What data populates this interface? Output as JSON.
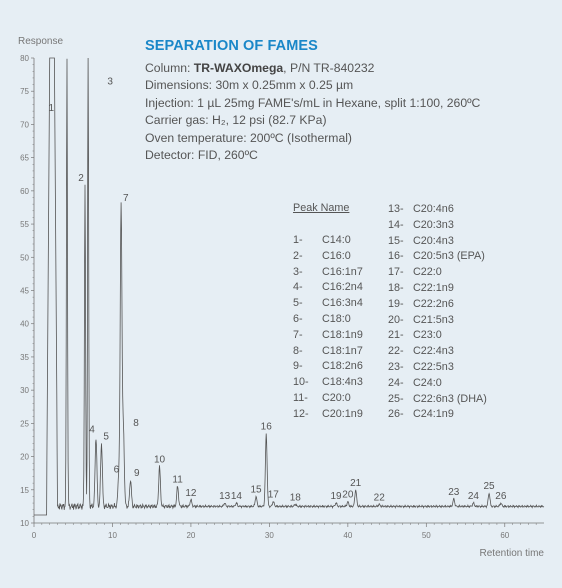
{
  "info": {
    "title": "SEPARATION OF FAMES",
    "column_label": "Column: ",
    "column_name": "TR-WAXOmega",
    "column_pn": ", P/N TR-840232",
    "dimensions": "Dimensions: 30m x 0.25mm x 0.25 µm",
    "injection": "Injection: 1 µL 25mg FAME's/mL in Hexane, split 1:100, 260ºC",
    "carrier": "Carrier gas: H₂, 12 psi (82.7 KPa)",
    "oven": "Oven temperature: 200ºC (Isothermal)",
    "detector": "Detector: FID, 260ºC"
  },
  "peak_table": {
    "header": "Peak Name",
    "left": [
      {
        "n": "1-",
        "name": "C14:0"
      },
      {
        "n": "2-",
        "name": "C16:0"
      },
      {
        "n": "3-",
        "name": "C16:1n7"
      },
      {
        "n": "4-",
        "name": "C16:2n4"
      },
      {
        "n": "5-",
        "name": "C16:3n4"
      },
      {
        "n": "6-",
        "name": "C18:0"
      },
      {
        "n": "7-",
        "name": "C18:1n9"
      },
      {
        "n": "8-",
        "name": "C18:1n7"
      },
      {
        "n": "9-",
        "name": "C18:2n6"
      },
      {
        "n": "10-",
        "name": "C18:4n3"
      },
      {
        "n": "11-",
        "name": "C20:0"
      },
      {
        "n": "12-",
        "name": "C20:1n9"
      }
    ],
    "right": [
      {
        "n": "13-",
        "name": "C20:4n6"
      },
      {
        "n": "14-",
        "name": "C20:3n3"
      },
      {
        "n": "15-",
        "name": "C20:4n3"
      },
      {
        "n": "16-",
        "name": "C20:5n3 (EPA)"
      },
      {
        "n": "17-",
        "name": "C22:0"
      },
      {
        "n": "18-",
        "name": "C22:1n9"
      },
      {
        "n": "19-",
        "name": "C22:2n6"
      },
      {
        "n": "20-",
        "name": "C21:5n3"
      },
      {
        "n": "21-",
        "name": "C23:0"
      },
      {
        "n": "22-",
        "name": "C22:4n3"
      },
      {
        "n": "23-",
        "name": "C22:5n3"
      },
      {
        "n": "24-",
        "name": "C24:0"
      },
      {
        "n": "25-",
        "name": "C22:6n3 (DHA)"
      },
      {
        "n": "26-",
        "name": "C24:1n9"
      }
    ]
  },
  "chart_data": {
    "type": "line",
    "title": "",
    "xlabel": "Retention time",
    "ylabel": "Response",
    "xlim": [
      0,
      65
    ],
    "ylim": [
      10,
      80
    ],
    "x_ticks": [
      0,
      10,
      20,
      30,
      40,
      50,
      60
    ],
    "y_ticks": [
      10,
      15,
      20,
      25,
      30,
      35,
      40,
      45,
      50,
      55,
      60,
      65,
      70,
      75,
      80
    ],
    "baseline": 12.5,
    "series": [
      {
        "peaks": [
          {
            "label": "1",
            "x": 4.2,
            "y": 80
          },
          {
            "label": "2",
            "x": 6.5,
            "y": 61
          },
          {
            "label": "3",
            "x": 6.9,
            "y": 80
          },
          {
            "label": "4",
            "x": 7.9,
            "y": 23
          },
          {
            "label": "5",
            "x": 8.6,
            "y": 22
          },
          {
            "label": "6",
            "x": 10.8,
            "y": 17
          },
          {
            "label": "7",
            "x": 11.1,
            "y": 58
          },
          {
            "label": "8",
            "x": 11.4,
            "y": 24
          },
          {
            "label": "9",
            "x": 12.3,
            "y": 16.5
          },
          {
            "label": "10",
            "x": 16.0,
            "y": 18.5
          },
          {
            "label": "11",
            "x": 18.3,
            "y": 15.5
          },
          {
            "label": "12",
            "x": 20.0,
            "y": 13.5
          },
          {
            "label": "13",
            "x": 24.3,
            "y": 13.0
          },
          {
            "label": "14",
            "x": 25.8,
            "y": 13.0
          },
          {
            "label": "15",
            "x": 28.3,
            "y": 14.0
          },
          {
            "label": "16",
            "x": 29.6,
            "y": 23.5
          },
          {
            "label": "17",
            "x": 30.5,
            "y": 13.2
          },
          {
            "label": "18",
            "x": 33.3,
            "y": 12.8
          },
          {
            "label": "19",
            "x": 38.5,
            "y": 13.0
          },
          {
            "label": "20",
            "x": 40.0,
            "y": 13.2
          },
          {
            "label": "21",
            "x": 41.0,
            "y": 15.0
          },
          {
            "label": "22",
            "x": 44.0,
            "y": 12.8
          },
          {
            "label": "23",
            "x": 53.5,
            "y": 13.6
          },
          {
            "label": "24",
            "x": 56.0,
            "y": 13.0
          },
          {
            "label": "25",
            "x": 58.0,
            "y": 14.5
          },
          {
            "label": "26",
            "x": 59.5,
            "y": 13.0
          }
        ]
      }
    ],
    "colors": {
      "trace": "#555555",
      "axis": "#777777",
      "tick_text": "#777777",
      "label_text": "#555555"
    }
  }
}
